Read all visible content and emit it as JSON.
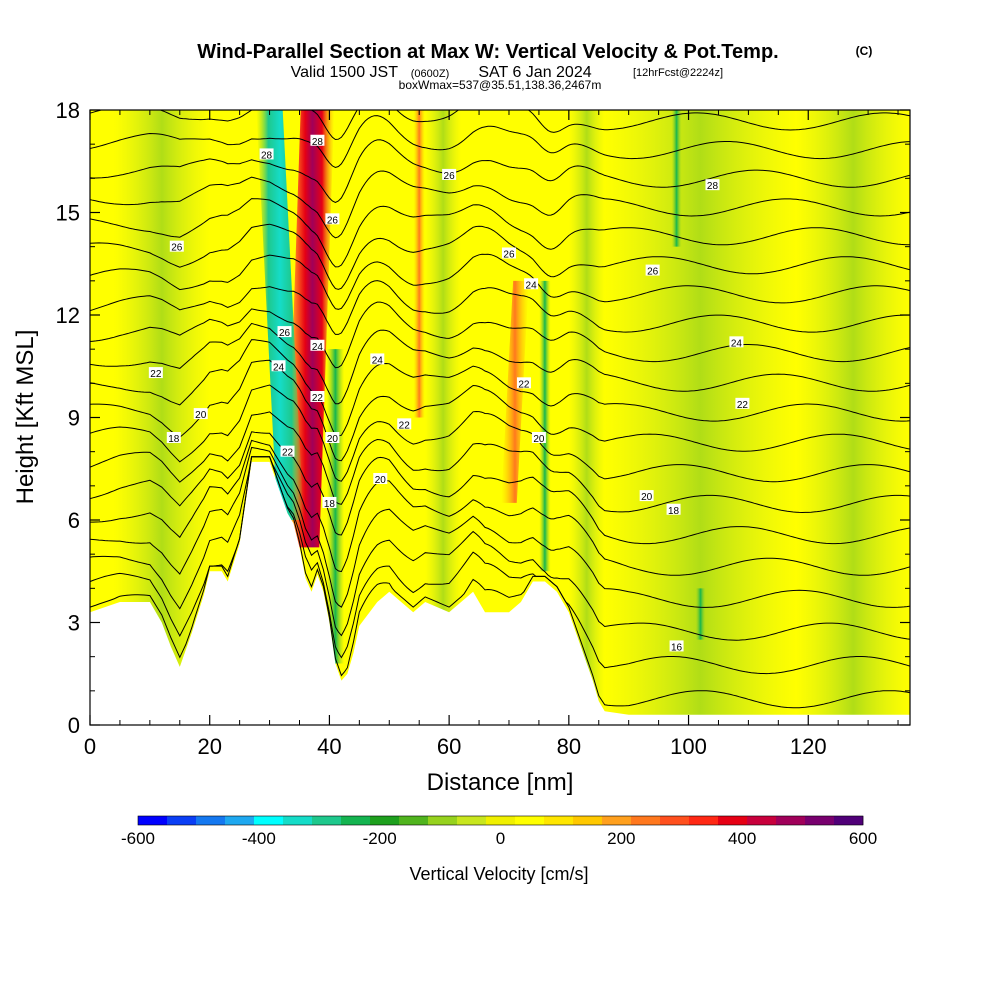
{
  "header": {
    "title": "Wind-Parallel Section at Max W: Vertical Velocity & Pot.Temp.",
    "title_mark": "(C)",
    "subtitle_valid": "Valid 1500 JST",
    "subtitle_utc": "(0600Z)",
    "subtitle_date": "SAT 6 Jan 2024",
    "subtitle_fcst": "[12hrFcst@2224z]",
    "note": "boxWmax=537@35.51,138.36,2467m"
  },
  "colorbar": {
    "label": "Vertical Velocity [cm/s]",
    "min": -600,
    "max": 600,
    "ticks": [
      -600,
      -400,
      -200,
      0,
      200,
      400,
      600
    ],
    "colors": [
      "#0000ff",
      "#0a3ef5",
      "#1478f0",
      "#1ea8f0",
      "#00ffff",
      "#15dcc8",
      "#1ec88c",
      "#14b450",
      "#1ea01e",
      "#50b41e",
      "#96d21e",
      "#c8e61e",
      "#f0f000",
      "#ffff00",
      "#ffe600",
      "#ffc800",
      "#ffa01e",
      "#ff781e",
      "#ff501e",
      "#ff2814",
      "#e60014",
      "#c8003c",
      "#a0005a",
      "#78006e",
      "#500078"
    ]
  },
  "chart_data": {
    "type": "heatmap",
    "title": "Wind-Parallel Section at Max W: Vertical Velocity & Pot.Temp.",
    "xlabel": "Distance [nm]",
    "ylabel": "Height [Kft MSL]",
    "xlim": [
      0,
      137
    ],
    "ylim": [
      0,
      18
    ],
    "x_ticks": [
      0,
      20,
      40,
      60,
      80,
      100,
      120
    ],
    "y_ticks": [
      0,
      3,
      6,
      9,
      12,
      15,
      18
    ],
    "variable": "Vertical Velocity [cm/s]",
    "contour_variable": "Pot.Temp. (C)",
    "terrain_profile": {
      "x": [
        0,
        5,
        10,
        12,
        13.5,
        15,
        17,
        19,
        20,
        22,
        23,
        25,
        27,
        30,
        32,
        33,
        34,
        35,
        36,
        37,
        38,
        39,
        40,
        41,
        42,
        43,
        44,
        45,
        48,
        50,
        52,
        54,
        56,
        60,
        62,
        64,
        66,
        68,
        70,
        72,
        74,
        76,
        78,
        80,
        82,
        84,
        85,
        86,
        90,
        100,
        110,
        120,
        130,
        137
      ],
      "y": [
        3.3,
        3.6,
        3.6,
        3.0,
        2.3,
        1.7,
        2.7,
        3.8,
        4.5,
        4.5,
        4.2,
        5.3,
        7.7,
        7.7,
        6.7,
        6.2,
        5.9,
        5.2,
        4.3,
        3.9,
        4.4,
        3.9,
        3.0,
        1.8,
        1.3,
        1.5,
        2.1,
        2.9,
        3.6,
        3.9,
        3.6,
        3.3,
        3.6,
        3.3,
        3.6,
        3.9,
        3.3,
        3.3,
        3.3,
        3.6,
        4.2,
        4.2,
        3.9,
        3.3,
        2.3,
        1.3,
        0.7,
        0.4,
        0.3,
        0.3,
        0.3,
        0.3,
        0.3,
        0.3
      ]
    },
    "vertical_velocity_features": [
      {
        "kind": "updraft-core",
        "x_top": 38,
        "x_bottom": 35.5,
        "y_top": 18,
        "y_bottom": 5.2,
        "peak": 537
      },
      {
        "kind": "downdraft-core",
        "x_top": 30,
        "x_bottom": 33.5,
        "y_top": 18,
        "y_bottom": 6,
        "peak": -420
      },
      {
        "kind": "downdraft",
        "x_top": 41,
        "x_bottom": 41,
        "y_top": 11,
        "y_bottom": 1.8,
        "peak": -280
      },
      {
        "kind": "updraft",
        "x_top": 72,
        "x_bottom": 70,
        "y_top": 13,
        "y_bottom": 6.5,
        "peak": 250
      },
      {
        "kind": "downdraft",
        "x_top": 76,
        "x_bottom": 76,
        "y_top": 13,
        "y_bottom": 4.5,
        "peak": -180
      },
      {
        "kind": "updraft",
        "x_top": 55,
        "x_bottom": 55,
        "y_top": 18,
        "y_bottom": 9,
        "peak": 180
      },
      {
        "kind": "downdraft",
        "x_top": 98,
        "x_bottom": 98,
        "y_top": 18,
        "y_bottom": 14,
        "peak": -80
      },
      {
        "kind": "downdraft",
        "x_top": 102,
        "x_bottom": 102,
        "y_top": 4,
        "y_bottom": 2.5,
        "peak": -100
      }
    ],
    "contour_level_labels": [
      {
        "text": "28",
        "x": 29.5,
        "y": 16.7
      },
      {
        "text": "28",
        "x": 38,
        "y": 17.1
      },
      {
        "text": "26",
        "x": 40.5,
        "y": 14.8
      },
      {
        "text": "26",
        "x": 14.5,
        "y": 14.0
      },
      {
        "text": "26",
        "x": 60,
        "y": 16.1
      },
      {
        "text": "28",
        "x": 104,
        "y": 15.8
      },
      {
        "text": "26",
        "x": 70,
        "y": 13.8
      },
      {
        "text": "26",
        "x": 94,
        "y": 13.3
      },
      {
        "text": "24",
        "x": 73.7,
        "y": 12.9
      },
      {
        "text": "26",
        "x": 32.5,
        "y": 11.5
      },
      {
        "text": "24",
        "x": 38,
        "y": 11.1
      },
      {
        "text": "24",
        "x": 48,
        "y": 10.7
      },
      {
        "text": "24",
        "x": 108,
        "y": 11.2
      },
      {
        "text": "22",
        "x": 11,
        "y": 10.3
      },
      {
        "text": "24",
        "x": 31.5,
        "y": 10.5
      },
      {
        "text": "22",
        "x": 72.5,
        "y": 10.0
      },
      {
        "text": "22",
        "x": 38,
        "y": 9.6
      },
      {
        "text": "22",
        "x": 109,
        "y": 9.4
      },
      {
        "text": "20",
        "x": 18.5,
        "y": 9.1
      },
      {
        "text": "22",
        "x": 52.5,
        "y": 8.8
      },
      {
        "text": "18",
        "x": 14,
        "y": 8.4
      },
      {
        "text": "20",
        "x": 40.5,
        "y": 8.4
      },
      {
        "text": "20",
        "x": 75,
        "y": 8.4
      },
      {
        "text": "22",
        "x": 33,
        "y": 8.0
      },
      {
        "text": "20",
        "x": 48.5,
        "y": 7.2
      },
      {
        "text": "20",
        "x": 93,
        "y": 6.7
      },
      {
        "text": "18",
        "x": 40,
        "y": 6.5
      },
      {
        "text": "18",
        "x": 97.5,
        "y": 6.3
      },
      {
        "text": "16",
        "x": 98,
        "y": 2.3
      }
    ]
  }
}
